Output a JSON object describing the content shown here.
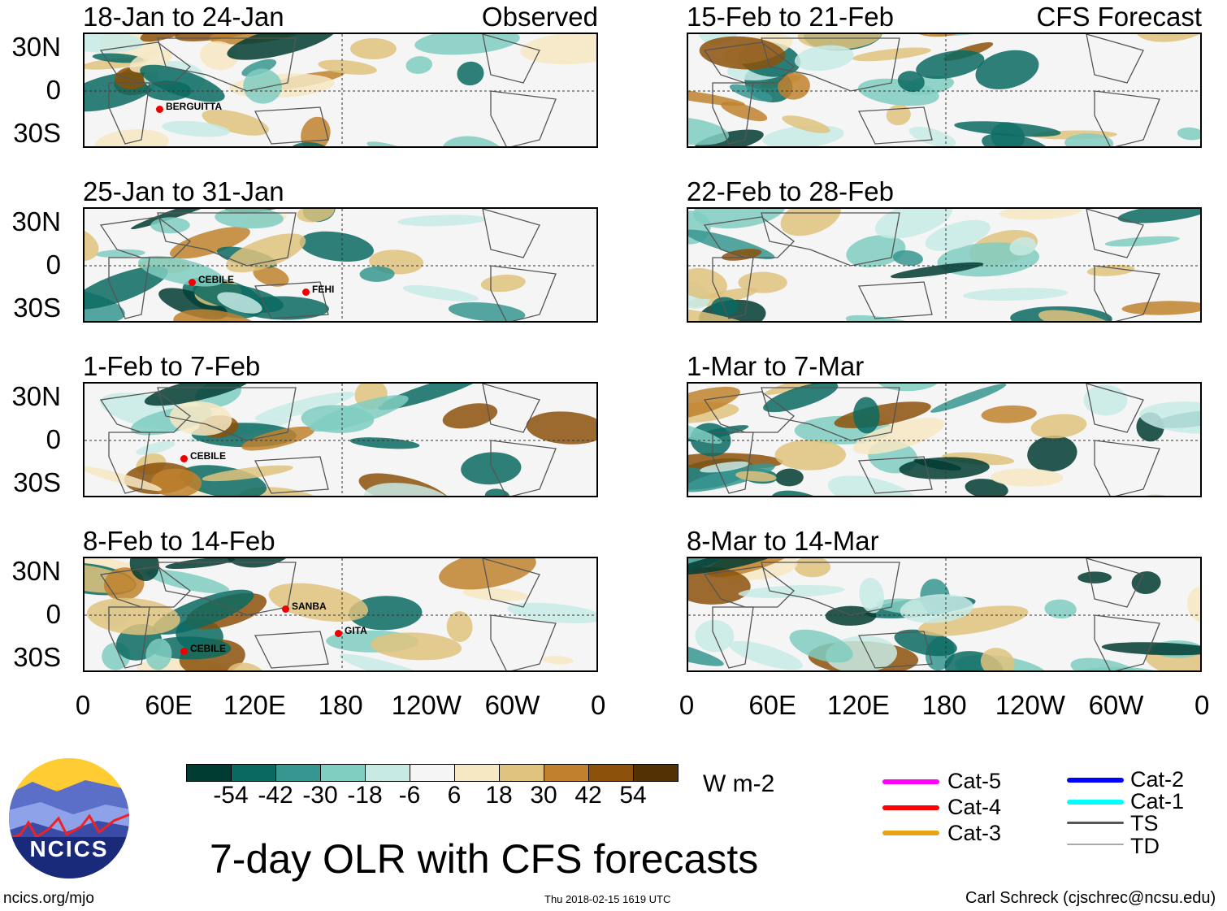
{
  "panels": [
    {
      "title": "18-Jan to 24-Jan",
      "tag": "Observed",
      "storms": [
        "BERGUITTA"
      ]
    },
    {
      "title": "25-Jan to 31-Jan",
      "storms": [
        "CEBILE",
        "FEHI"
      ]
    },
    {
      "title": "1-Feb to 7-Feb",
      "storms": [
        "CEBILE"
      ]
    },
    {
      "title": "8-Feb to 14-Feb",
      "storms": [
        "SANBA",
        "CEBILE",
        "GITA"
      ]
    },
    {
      "title": "15-Feb to 21-Feb",
      "tag": "CFS Forecast",
      "storms": []
    },
    {
      "title": "22-Feb to 28-Feb",
      "storms": []
    },
    {
      "title": "1-Mar to 7-Mar",
      "storms": []
    },
    {
      "title": "8-Mar to 14-Mar",
      "storms": []
    }
  ],
  "y_ticks": [
    "30N",
    "0",
    "30S"
  ],
  "x_ticks": [
    "0",
    "60E",
    "120E",
    "180",
    "120W",
    "60W",
    "0"
  ],
  "colorbar": {
    "colors": [
      "#013c33",
      "#0a6a62",
      "#379790",
      "#80cdc1",
      "#c7eae5",
      "#f5f5f5",
      "#f6e8c3",
      "#dfc27d",
      "#bf812d",
      "#8c510a",
      "#543005"
    ],
    "labels": [
      "-54",
      "-42",
      "-30",
      "-18",
      "-6",
      "6",
      "18",
      "30",
      "42",
      "54"
    ],
    "units": "W m-2"
  },
  "legend": [
    {
      "label": "Cat-5",
      "color": "#ff00ff"
    },
    {
      "label": "Cat-4",
      "color": "#ff0000"
    },
    {
      "label": "Cat-3",
      "color": "#e8a317"
    },
    {
      "label": "Cat-2",
      "color": "#0000ff"
    },
    {
      "label": "Cat-1",
      "color": "#00ffff"
    },
    {
      "label": "TS",
      "color": "#555555"
    },
    {
      "label": "TD",
      "color": "#aaaaaa"
    }
  ],
  "logo_text": "NCICS",
  "main_title": "7-day OLR with CFS forecasts",
  "footer": {
    "left": "ncics.org/mjo",
    "center": "Thu 2018-02-15 1619 UTC",
    "right": "Carl Schreck (cjschrec@ncsu.edu)"
  }
}
